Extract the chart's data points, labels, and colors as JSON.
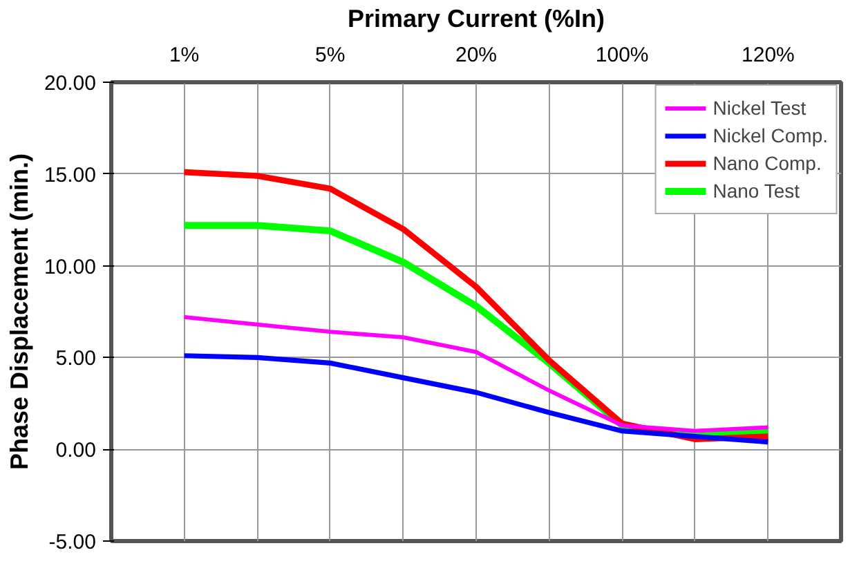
{
  "chart_data": {
    "type": "line",
    "xlabel": "Primary Current (%In)",
    "ylabel": "Phase Displacement (min.)",
    "categories": [
      "1%",
      null,
      "5%",
      null,
      "20%",
      null,
      "100%",
      null,
      "120%"
    ],
    "series": [
      {
        "name": "Nickel Test",
        "color": "#ff00ff",
        "values": [
          7.2,
          6.8,
          6.4,
          6.1,
          5.3,
          3.2,
          1.3,
          1.0,
          1.2
        ]
      },
      {
        "name": "Nickel Comp.",
        "color": "#0000ff",
        "values": [
          5.1,
          5.0,
          4.7,
          3.9,
          3.1,
          2.0,
          1.0,
          0.7,
          0.4
        ]
      },
      {
        "name": "Nano Comp.",
        "color": "#ff0000",
        "values": [
          15.1,
          14.9,
          14.2,
          12.0,
          8.85,
          4.85,
          1.4,
          0.55,
          0.7
        ]
      },
      {
        "name": "Nano Test",
        "color": "#00ff00",
        "values": [
          12.2,
          12.2,
          11.9,
          10.2,
          7.8,
          4.7,
          1.3,
          0.7,
          1.0
        ]
      }
    ],
    "ylim": [
      -5,
      20
    ],
    "yticks": [
      {
        "value": -5,
        "label": "-5.00"
      },
      {
        "value": 0,
        "label": "0.00"
      },
      {
        "value": 5,
        "label": "5.00"
      },
      {
        "value": 10,
        "label": "10.00"
      },
      {
        "value": 15,
        "label": "15.00"
      },
      {
        "value": 20,
        "label": "20.00"
      }
    ],
    "grid": true,
    "legend": "top right",
    "marker": "none",
    "line_style": "solid"
  }
}
